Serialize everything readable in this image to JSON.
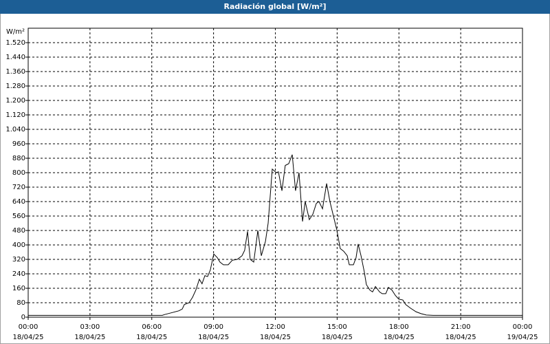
{
  "chart_data": {
    "type": "line",
    "title": "Radiación global [W/m²]",
    "y_label": "W/m²",
    "x": [
      0,
      6.51,
      6.64,
      6.98,
      7.31,
      7.48,
      7.58,
      7.81,
      7.98,
      8.14,
      8.31,
      8.44,
      8.58,
      8.71,
      8.84,
      9.01,
      9.18,
      9.31,
      9.48,
      9.71,
      9.91,
      10.15,
      10.38,
      10.51,
      10.65,
      10.78,
      10.95,
      11.15,
      11.32,
      11.52,
      11.65,
      11.85,
      12.05,
      12.15,
      12.32,
      12.48,
      12.65,
      12.82,
      12.98,
      13.15,
      13.32,
      13.45,
      13.65,
      13.82,
      13.99,
      14.12,
      14.29,
      14.49,
      14.65,
      14.82,
      14.99,
      15.15,
      15.32,
      15.49,
      15.59,
      15.79,
      15.92,
      16.02,
      16.16,
      16.32,
      16.42,
      16.59,
      16.72,
      16.86,
      17.06,
      17.19,
      17.36,
      17.49,
      17.66,
      17.83,
      17.99,
      18.19,
      18.33,
      18.56,
      18.83,
      19.06,
      19.33,
      19.66,
      24
    ],
    "series": [
      {
        "color": "#000000",
        "values": [
          10,
          10,
          15,
          25,
          35,
          45,
          70,
          80,
          110,
          150,
          210,
          185,
          230,
          225,
          260,
          350,
          330,
          305,
          290,
          290,
          315,
          320,
          340,
          370,
          475,
          320,
          305,
          480,
          340,
          420,
          520,
          820,
          800,
          805,
          700,
          840,
          850,
          900,
          700,
          800,
          530,
          640,
          540,
          570,
          630,
          640,
          600,
          740,
          640,
          560,
          480,
          380,
          365,
          340,
          290,
          290,
          330,
          405,
          340,
          250,
          180,
          150,
          140,
          170,
          140,
          130,
          130,
          165,
          150,
          120,
          100,
          95,
          70,
          50,
          30,
          20,
          12,
          10,
          10
        ]
      }
    ],
    "xlim": [
      0,
      24
    ],
    "xticks": [
      {
        "value": 0,
        "label": "00:00"
      },
      {
        "value": 3,
        "label": "03:00"
      },
      {
        "value": 6,
        "label": "06:00"
      },
      {
        "value": 9,
        "label": "09:00"
      },
      {
        "value": 12,
        "label": "12:00"
      },
      {
        "value": 15,
        "label": "15:00"
      },
      {
        "value": 18,
        "label": "18:00"
      },
      {
        "value": 21,
        "label": "21:00"
      },
      {
        "value": 24,
        "label": "00:00"
      }
    ],
    "xtick_dates": [
      "18/04/25",
      "18/04/25",
      "18/04/25",
      "18/04/25",
      "18/04/25",
      "18/04/25",
      "18/04/25",
      "18/04/25",
      "19/04/25"
    ],
    "ylim": [
      0,
      1600
    ],
    "yticks": [
      0,
      80,
      160,
      240,
      320,
      400,
      480,
      560,
      640,
      720,
      800,
      880,
      960,
      {
        "value": 1040,
        "label": "1.040"
      },
      {
        "value": 1120,
        "label": "1.120"
      },
      {
        "value": 1200,
        "label": "1.200"
      },
      {
        "value": 1280,
        "label": "1.280"
      },
      {
        "value": 1360,
        "label": "1.360"
      },
      {
        "value": 1440,
        "label": "1.440"
      },
      {
        "value": 1520,
        "label": "1.520"
      }
    ],
    "grid": true
  }
}
